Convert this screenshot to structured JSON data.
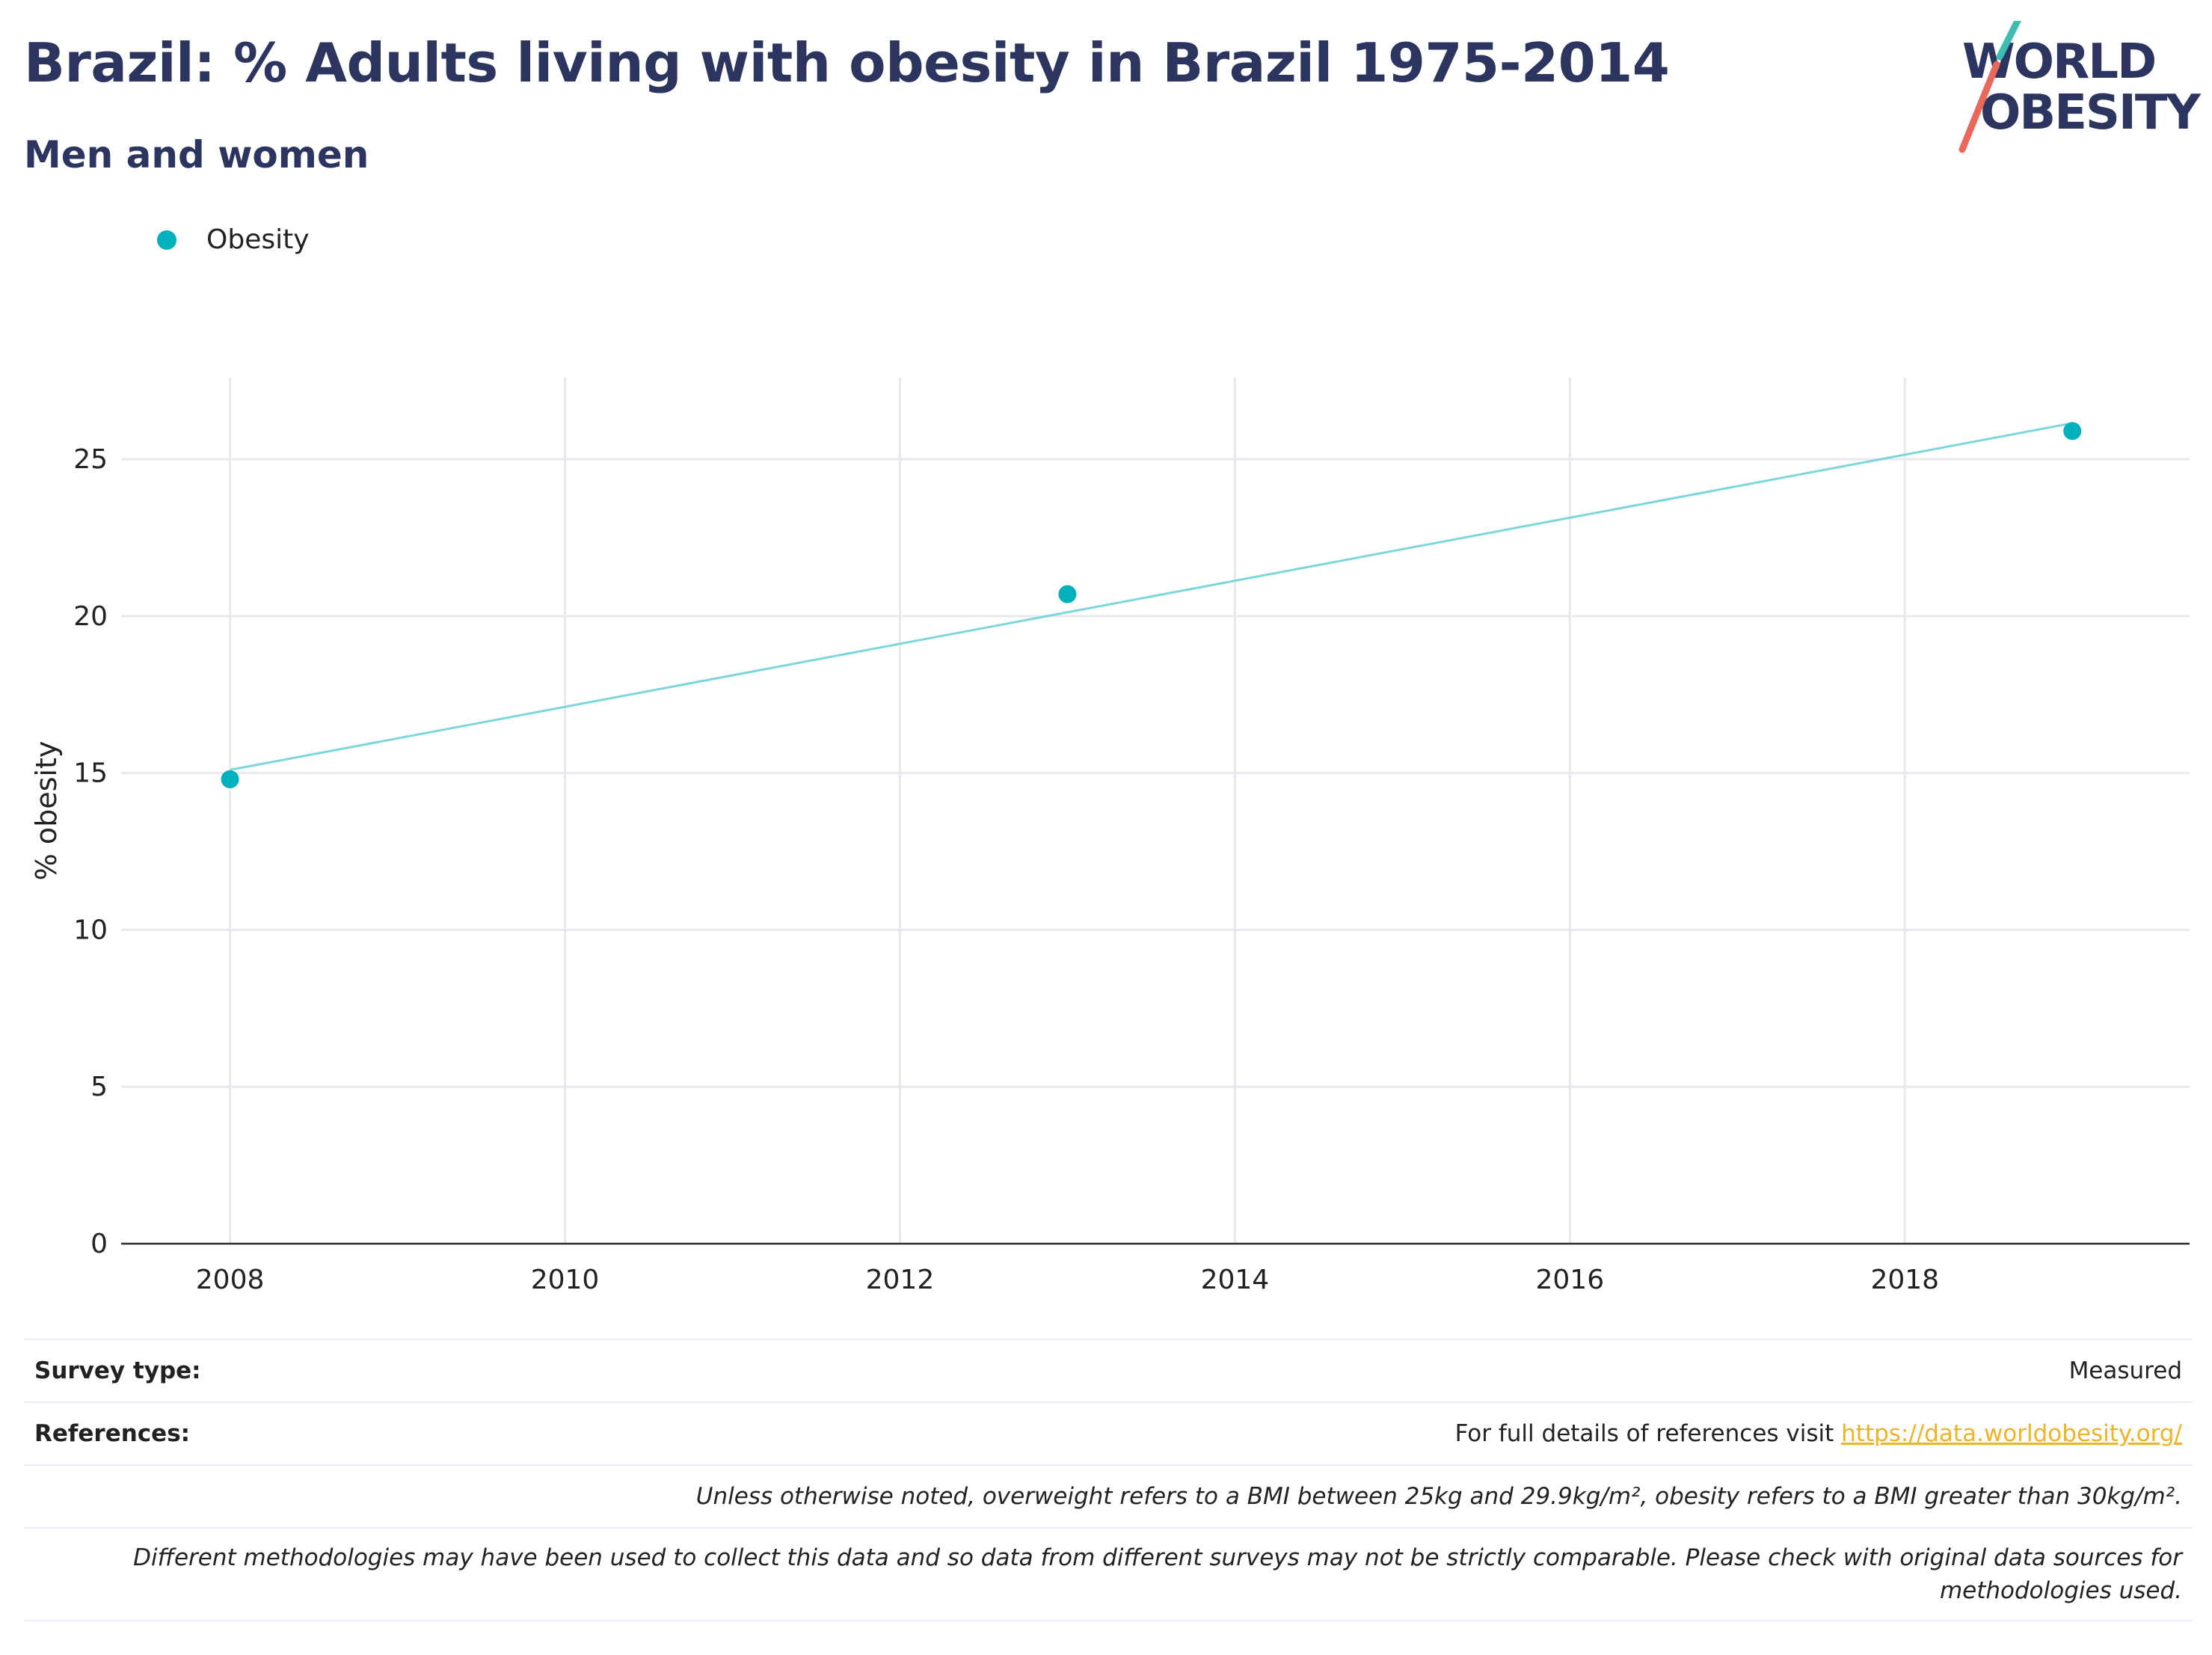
{
  "header": {
    "title": "Brazil: % Adults living with obesity in Brazil 1975-2014",
    "subtitle": "Men and women"
  },
  "logo": {
    "line1": "WORLD",
    "line2": "OBESITY",
    "text_color": "#2c355f",
    "slash_top_color": "#3dbdb1",
    "slash_bottom_color": "#e8685b"
  },
  "legend": {
    "label": "Obesity",
    "color": "#00b0bc"
  },
  "chart_data": {
    "type": "scatter",
    "title": "Brazil: % Adults living with obesity in Brazil 1975-2014",
    "subtitle": "Men and women",
    "xlabel": "",
    "ylabel": "% obesity",
    "xlim": [
      2007.35,
      2019.7
    ],
    "ylim": [
      0,
      27.6
    ],
    "xticks": [
      2008,
      2010,
      2012,
      2014,
      2016,
      2018
    ],
    "yticks": [
      0,
      5,
      10,
      15,
      20,
      25
    ],
    "grid": true,
    "legend_position": "top-left",
    "series": [
      {
        "name": "Obesity",
        "color": "#00b0bc",
        "points": [
          {
            "x": 2008,
            "y": 14.8
          },
          {
            "x": 2013,
            "y": 20.7
          },
          {
            "x": 2019,
            "y": 25.9
          }
        ]
      }
    ],
    "trendline": {
      "color": "#7dd6dc",
      "points": [
        {
          "x": 2008,
          "y": 15.1
        },
        {
          "x": 2019,
          "y": 26.15
        }
      ]
    }
  },
  "footer": {
    "survey_type_label": "Survey type:",
    "survey_type_value": "Measured",
    "references_label": "References:",
    "references_text": "For full details of references visit ",
    "references_link": "https://data.worldobesity.org/",
    "note_bmi": "Unless otherwise noted, overweight refers to a BMI between 25kg and 29.9kg/m², obesity refers to a BMI greater than 30kg/m².",
    "note_methodology": "Different methodologies may have been used to collect this data and so data from different surveys may not be strictly comparable. Please check with original data sources for methodologies used."
  }
}
